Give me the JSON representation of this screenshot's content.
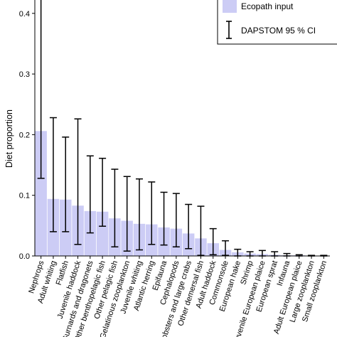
{
  "chart_data": {
    "type": "bar",
    "ylabel": "Diet proportion",
    "xlabel": "",
    "ylim": [
      0,
      0.43
    ],
    "yticks": [
      "0.0",
      "0.1",
      "0.2",
      "0.3",
      "0.4"
    ],
    "legend": {
      "placement": "top-right",
      "items": [
        {
          "label": "Ecopath input",
          "kind": "bar"
        },
        {
          "label": "DAPSTOM 95 % CI",
          "kind": "errorbar"
        }
      ]
    },
    "colors": {
      "bar": "#ccccf5",
      "errorbar": "#000000"
    },
    "categories": [
      "Nephrops",
      "Adult whiting",
      "Flatfish",
      "Juvenile haddock",
      "Gurnards and dragonets",
      "Other benthopelagic fish",
      "Other pelagic fish",
      "Gelatinous zooplankton",
      "Juvenile whiting",
      "Atlantic herring",
      "Epifauna",
      "Cephalopods",
      "Lobsters and large crabs",
      "Other demersal fish",
      "Adult haddock",
      "Commonsole",
      "European hake",
      "Shrimp",
      "Juvenile European plaice",
      "European sprat",
      "Infauna",
      "Adult European plaice",
      "Large zooplankton",
      "Small zooplankton"
    ],
    "values": [
      0.206,
      0.094,
      0.093,
      0.083,
      0.074,
      0.073,
      0.062,
      0.058,
      0.053,
      0.052,
      0.047,
      0.045,
      0.037,
      0.029,
      0.021,
      0.01,
      0.006,
      0.004,
      0.003,
      0.002,
      0.001,
      0.001,
      0.0,
      0.0
    ],
    "ci_lower": [
      0.128,
      0.04,
      0.04,
      0.019,
      0.038,
      0.049,
      0.015,
      0.008,
      0.01,
      0.019,
      0.018,
      0.015,
      0.012,
      0.001,
      0.002,
      0.001,
      0.0,
      0.0,
      0.0,
      0.0,
      0.0,
      0.0,
      0.0,
      0.0
    ],
    "ci_upper": [
      0.44,
      0.228,
      0.196,
      0.226,
      0.165,
      0.161,
      0.143,
      0.131,
      0.127,
      0.122,
      0.105,
      0.103,
      0.085,
      0.082,
      0.045,
      0.025,
      0.011,
      0.007,
      0.009,
      0.007,
      0.004,
      0.002,
      0.001,
      0.001
    ]
  }
}
